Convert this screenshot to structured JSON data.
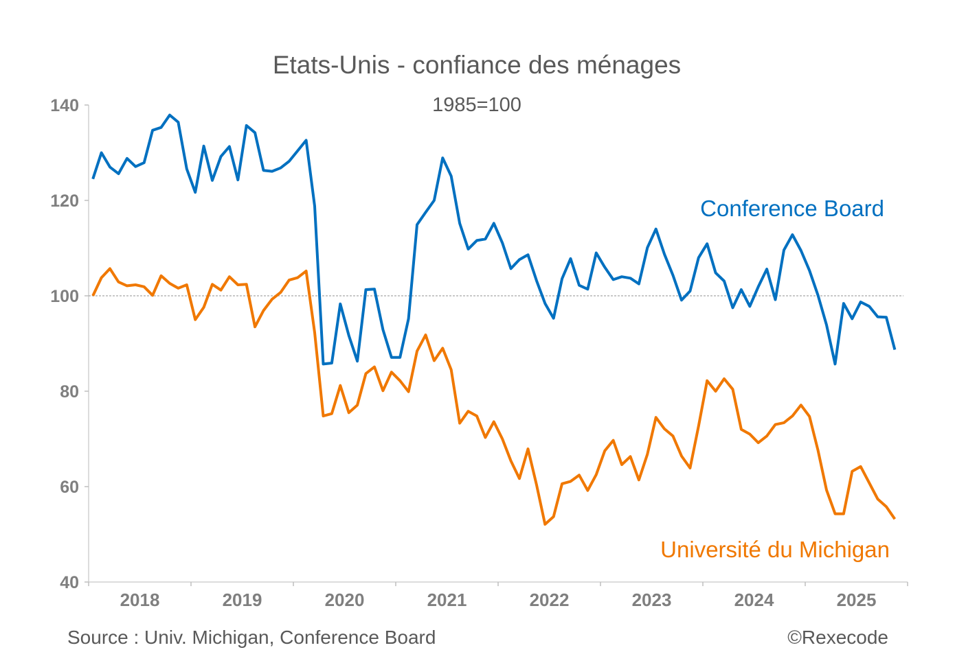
{
  "chart_data": {
    "type": "line",
    "title": "Etats-Unis - confiance des ménages",
    "subtitle": "1985=100",
    "xlabel": "",
    "ylabel": "",
    "ylim": [
      40,
      140
    ],
    "yticks": [
      "40",
      "60",
      "80",
      "100",
      "120",
      "140"
    ],
    "xticks": [
      "2018",
      "2019",
      "2020",
      "2021",
      "2022",
      "2023",
      "2024",
      "2025"
    ],
    "x_start": "2018-01",
    "x_end": "2025-11",
    "frequency": "monthly",
    "reference_line": 100,
    "grid": false,
    "series": [
      {
        "name": "Conference Board",
        "color": "#0070C0",
        "values": [
          124.5,
          130,
          127,
          125.6,
          128.8,
          127.1,
          127.9,
          134.7,
          135.3,
          137.9,
          136.4,
          126.6,
          121.7,
          131.4,
          124.2,
          129.2,
          131.3,
          124.3,
          135.7,
          134.2,
          126.3,
          126.1,
          126.8,
          128.2,
          130.4,
          132.6,
          118.8,
          85.7,
          85.9,
          98.3,
          91.7,
          86.3,
          101.3,
          101.4,
          92.9,
          87.1,
          87.1,
          95.2,
          114.9,
          117.5,
          120,
          128.9,
          125.1,
          115.2,
          109.8,
          111.6,
          111.9,
          115.2,
          111.1,
          105.7,
          107.6,
          108.6,
          103.2,
          98.4,
          95.3,
          103.6,
          107.8,
          102.2,
          101.4,
          109.0,
          106.0,
          103.4,
          104.0,
          103.7,
          102.5,
          110.1,
          114.0,
          108.7,
          104.3,
          99.1,
          101.0,
          108.0,
          110.9,
          104.8,
          103.1,
          97.5,
          101.3,
          97.8,
          101.9,
          105.6,
          99.2,
          109.6,
          112.8,
          109.5,
          105.3,
          100.1,
          93.9,
          85.7,
          98.4,
          95.2,
          98.7,
          97.8,
          95.6,
          95.5,
          88.7
        ]
      },
      {
        "name": "Université du Michigan",
        "color": "#F07800",
        "values": [
          100,
          103.8,
          105.7,
          102.9,
          102.1,
          102.3,
          101.9,
          100.1,
          104.2,
          102.6,
          101.6,
          102.3,
          95.0,
          97.6,
          102.4,
          101.2,
          104.0,
          102.3,
          102.4,
          93.5,
          96.9,
          99.3,
          100.7,
          103.3,
          103.8,
          105.2,
          92.3,
          74.8,
          75.3,
          81.2,
          75.5,
          77.1,
          83.7,
          85.1,
          80.1,
          84.0,
          82.2,
          79.9,
          88.4,
          91.8,
          86.4,
          89.0,
          84.5,
          73.3,
          75.8,
          74.8,
          70.3,
          73.6,
          70.0,
          65.4,
          61.7,
          67.9,
          60.4,
          52.1,
          53.7,
          60.6,
          61.1,
          62.4,
          59.2,
          62.5,
          67.5,
          69.7,
          64.6,
          66.3,
          61.4,
          66.8,
          74.5,
          72.1,
          70.6,
          66.4,
          63.9,
          72.7,
          82.2,
          80.0,
          82.6,
          80.4,
          72.0,
          71.0,
          69.2,
          70.6,
          73.0,
          73.4,
          74.8,
          77.1,
          74.7,
          67.6,
          59.3,
          54.3,
          54.3,
          63.2,
          64.2,
          60.8,
          57.4,
          55.8,
          53.2
        ]
      }
    ]
  },
  "footer": {
    "source": "Source : Univ. Michigan, Conference Board",
    "copyright": "©Rexecode"
  }
}
